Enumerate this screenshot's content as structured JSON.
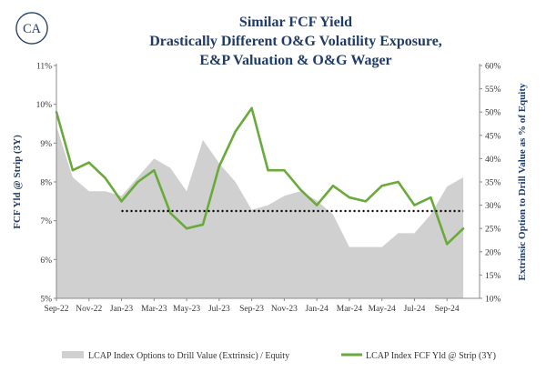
{
  "title_lines": [
    "Similar FCF Yield",
    "Drastically Different O&G Volatility Exposure,",
    "E&P Valuation & O&G Wager"
  ],
  "logo_text": "CA",
  "colors": {
    "title": "#1f3b66",
    "area": "#d0d0d0",
    "line": "#6aaa3a",
    "reference": "#000000"
  },
  "chart_data": {
    "type": "line",
    "title": "Similar FCF Yield / Drastically Different O&G Volatility Exposure, E&P Valuation & O&G Wager",
    "x_ticks": [
      "Sep-22",
      "Nov-22",
      "Jan-23",
      "Mar-23",
      "May-23",
      "Jul-23",
      "Sep-23",
      "Nov-23",
      "Jan-24",
      "Mar-24",
      "May-24",
      "Jul-24",
      "Sep-24"
    ],
    "xlim": [
      "2022-09",
      "2024-11"
    ],
    "y_left": {
      "label": "FCF Yld @ Strip (3Y)",
      "ticks": [
        "5%",
        "6%",
        "7%",
        "8%",
        "9%",
        "10%",
        "11%"
      ],
      "range": [
        5,
        11
      ]
    },
    "y_right": {
      "label": "Extrinsic Option to Drill Value as % of Equity",
      "ticks": [
        "10%",
        "15%",
        "20%",
        "25%",
        "30%",
        "35%",
        "40%",
        "45%",
        "50%",
        "55%",
        "60%"
      ],
      "range": [
        10,
        60
      ]
    },
    "series": [
      {
        "name": "LCAP Index Options to Drill Value (Extrinsic) / Equity",
        "type": "area",
        "axis": "right",
        "x": [
          "2022-09",
          "2022-10",
          "2022-11",
          "2022-12",
          "2023-01",
          "2023-02",
          "2023-03",
          "2023-04",
          "2023-05",
          "2023-06",
          "2023-07",
          "2023-08",
          "2023-09",
          "2023-10",
          "2023-11",
          "2023-12",
          "2024-01",
          "2024-02",
          "2024-03",
          "2024-04",
          "2024-05",
          "2024-06",
          "2024-07",
          "2024-08",
          "2024-09",
          "2024-10"
        ],
        "values": [
          47,
          36,
          33,
          33,
          32,
          36,
          40,
          38,
          33,
          44,
          39,
          35,
          29,
          30,
          32,
          33,
          31,
          28,
          21,
          21,
          21,
          24,
          24,
          28,
          34,
          36
        ]
      },
      {
        "name": "LCAP Index FCF Yld @ Strip (3Y)",
        "type": "line",
        "axis": "left",
        "x": [
          "2022-09",
          "2022-10",
          "2022-11",
          "2022-12",
          "2023-01",
          "2023-02",
          "2023-03",
          "2023-04",
          "2023-05",
          "2023-06",
          "2023-07",
          "2023-08",
          "2023-09",
          "2023-10",
          "2023-11",
          "2023-12",
          "2024-01",
          "2024-02",
          "2024-03",
          "2024-04",
          "2024-05",
          "2024-06",
          "2024-07",
          "2024-08",
          "2024-09",
          "2024-10"
        ],
        "values": [
          9.8,
          8.3,
          8.5,
          8.1,
          7.5,
          8.0,
          8.3,
          7.2,
          6.8,
          6.9,
          8.4,
          9.3,
          9.9,
          8.3,
          8.3,
          7.8,
          7.4,
          7.9,
          7.6,
          7.5,
          7.9,
          8.0,
          7.4,
          7.6,
          6.4,
          6.8
        ]
      }
    ],
    "reference_line": {
      "axis": "left",
      "value": 7.25,
      "x_from": "2023-01",
      "x_to": "2024-10",
      "style": "dotted"
    },
    "legend": [
      {
        "label": "LCAP Index Options to Drill Value (Extrinsic) / Equity",
        "kind": "area"
      },
      {
        "label": "LCAP Index FCF Yld @ Strip (3Y)",
        "kind": "line"
      }
    ],
    "legend_position": "bottom",
    "grid": false
  }
}
